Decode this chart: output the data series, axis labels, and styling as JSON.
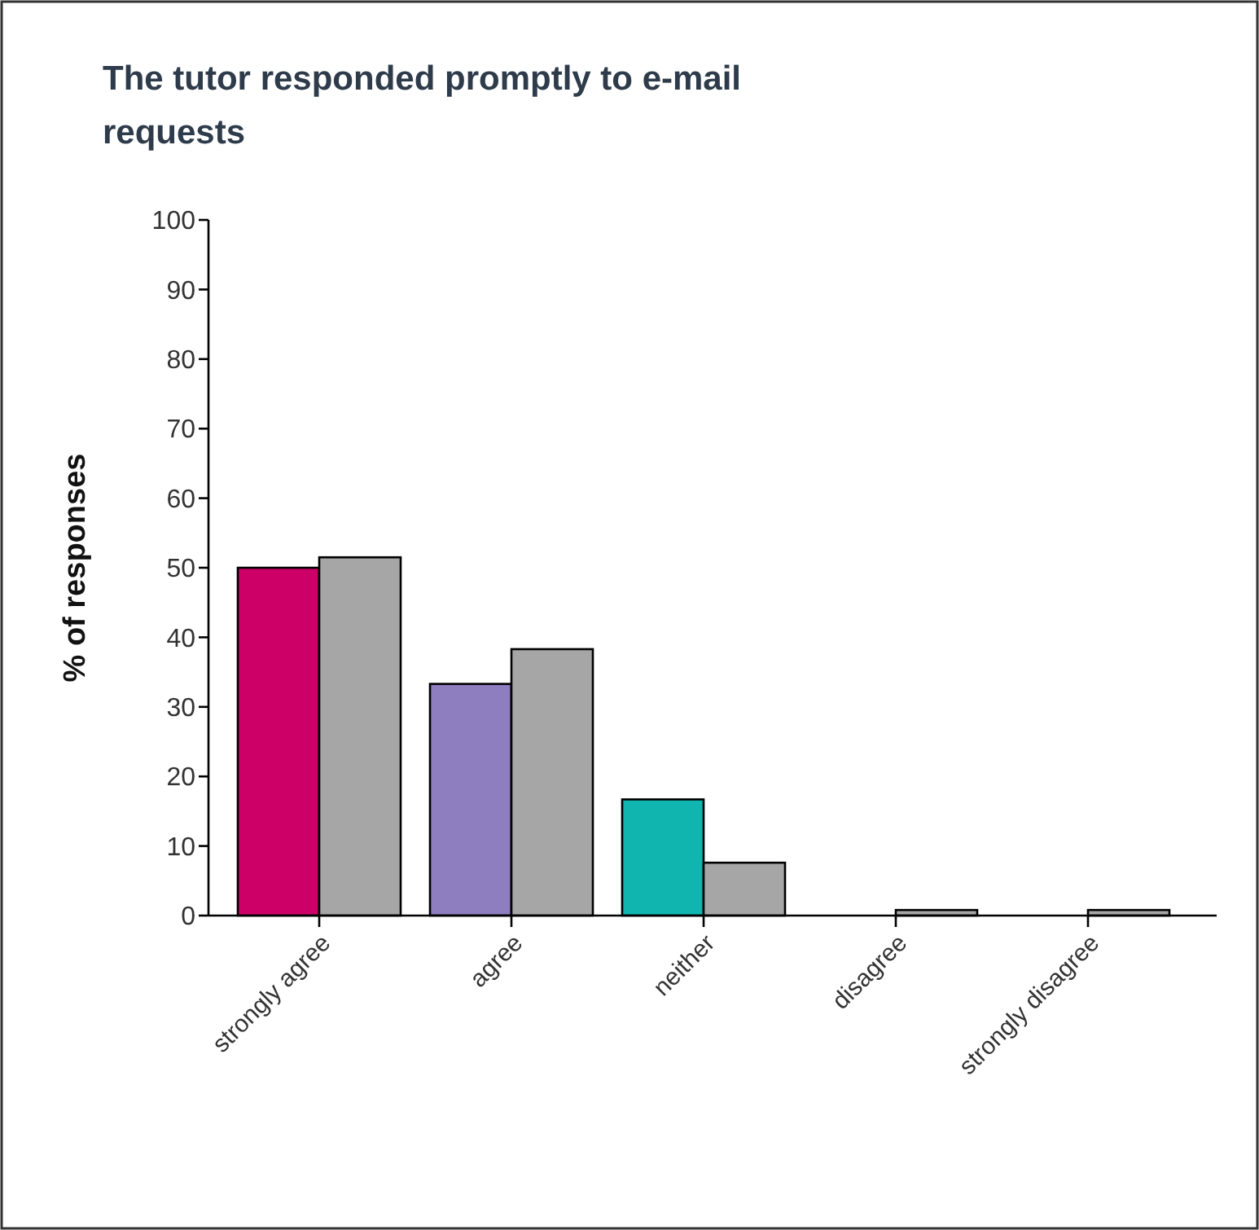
{
  "chart_data": {
    "type": "bar",
    "title": "The tutor responded promptly to e-mail requests",
    "ylabel": "% of responses",
    "categories": [
      "strongly agree",
      "agree",
      "neither",
      "disagree",
      "strongly disagree"
    ],
    "series": [
      {
        "colors": [
          "#cc0066",
          "#8e7dbf",
          "#11b5b0",
          "#cc0066",
          "#cc0066"
        ],
        "values": [
          50,
          33.3,
          16.7,
          0,
          0
        ]
      },
      {
        "color": "#a6a6a6",
        "values": [
          51.5,
          38.3,
          7.6,
          0.8,
          0.8
        ]
      }
    ],
    "ylim": [
      0,
      100
    ],
    "yticks": [
      0,
      10,
      20,
      30,
      40,
      50,
      60,
      70,
      80,
      90,
      100
    ],
    "grid": false
  }
}
